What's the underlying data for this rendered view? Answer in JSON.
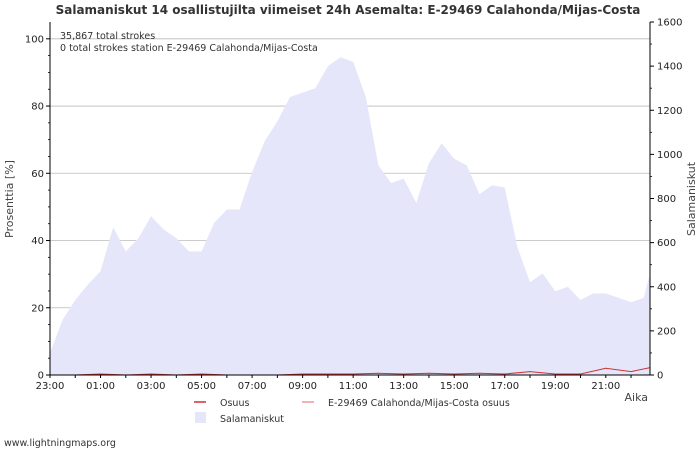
{
  "chart_data": {
    "type": "area",
    "title": "Salamaniskut 14 osallistujilta viimeiset 24h Asemalta: E-29469 Calahonda/Mijas-Costa",
    "ylabel_left": "Prosenttia   [%]",
    "ylabel_right": "Salamaniskut",
    "xlabel": "Aika",
    "ylim_left": [
      0,
      105
    ],
    "ylim_right": [
      0,
      1600
    ],
    "yticks_left": [
      0,
      20,
      40,
      60,
      80,
      100
    ],
    "yticks_right": [
      0,
      200,
      400,
      600,
      800,
      1000,
      1200,
      1400,
      1600
    ],
    "xlim_hours": [
      0,
      23.75
    ],
    "xticks": [
      {
        "h": 0,
        "label": "23:00"
      },
      {
        "h": 2,
        "label": "01:00"
      },
      {
        "h": 4,
        "label": "03:00"
      },
      {
        "h": 6,
        "label": "05:00"
      },
      {
        "h": 8,
        "label": "07:00"
      },
      {
        "h": 10,
        "label": "09:00"
      },
      {
        "h": 12,
        "label": "11:00"
      },
      {
        "h": 14,
        "label": "13:00"
      },
      {
        "h": 16,
        "label": "15:00"
      },
      {
        "h": 18,
        "label": "17:00"
      },
      {
        "h": 20,
        "label": "19:00"
      },
      {
        "h": 22,
        "label": "21:00"
      }
    ],
    "annotations": [
      "35,867 total strokes",
      "0 total strokes station E-29469 Calahonda/Mijas-Costa"
    ],
    "series": [
      {
        "name": "Salamaniskut",
        "axis": "right",
        "color": "#e6e6fa",
        "x": [
          0,
          0.5,
          1,
          1.5,
          2,
          2.5,
          3,
          3.5,
          4,
          4.5,
          5,
          5.5,
          6,
          6.5,
          7,
          7.5,
          8,
          8.5,
          9,
          9.5,
          10,
          10.5,
          11,
          11.5,
          12,
          12.5,
          13,
          13.5,
          14,
          14.5,
          15,
          15.5,
          16,
          16.5,
          17,
          17.5,
          18,
          18.5,
          19,
          19.5,
          20,
          20.5,
          21,
          21.5,
          22,
          22.5,
          23,
          23.5,
          23.75
        ],
        "values": [
          100,
          250,
          340,
          410,
          470,
          670,
          560,
          620,
          720,
          660,
          620,
          560,
          560,
          690,
          750,
          750,
          920,
          1060,
          1150,
          1260,
          1280,
          1300,
          1400,
          1440,
          1420,
          1260,
          950,
          870,
          890,
          780,
          960,
          1050,
          980,
          950,
          820,
          860,
          850,
          580,
          420,
          460,
          380,
          400,
          340,
          370,
          370,
          350,
          330,
          350,
          460
        ]
      },
      {
        "name": "Osuus",
        "axis": "left",
        "color": "#cc3333",
        "x": [
          0,
          1,
          2,
          3,
          4,
          5,
          6,
          7,
          8,
          9,
          10,
          11,
          12,
          13,
          14,
          15,
          16,
          17,
          18,
          19,
          20,
          21,
          22,
          23,
          23.75
        ],
        "values": [
          0,
          0,
          0.3,
          0,
          0.3,
          0,
          0.3,
          0,
          0,
          0,
          0.3,
          0.3,
          0.3,
          0.5,
          0.3,
          0.5,
          0.3,
          0.5,
          0.3,
          1,
          0.3,
          0.3,
          2,
          1,
          2.2
        ]
      },
      {
        "name": "E-29469 Calahonda/Mijas-Costa osuus",
        "axis": "left",
        "color": "#ee9999",
        "x": [
          0,
          23.75
        ],
        "values": [
          0,
          0
        ]
      }
    ]
  },
  "legend": {
    "osuus": "Osuus",
    "station": "E-29469 Calahonda/Mijas-Costa osuus",
    "strokes": "Salamaniskut"
  },
  "watermark": "www.lightningmaps.org",
  "colors": {
    "area": "#e6e6fa",
    "osuus": "#cc3333",
    "station": "#ee9999",
    "grid": "#bbbbbb",
    "axis": "#000000"
  }
}
